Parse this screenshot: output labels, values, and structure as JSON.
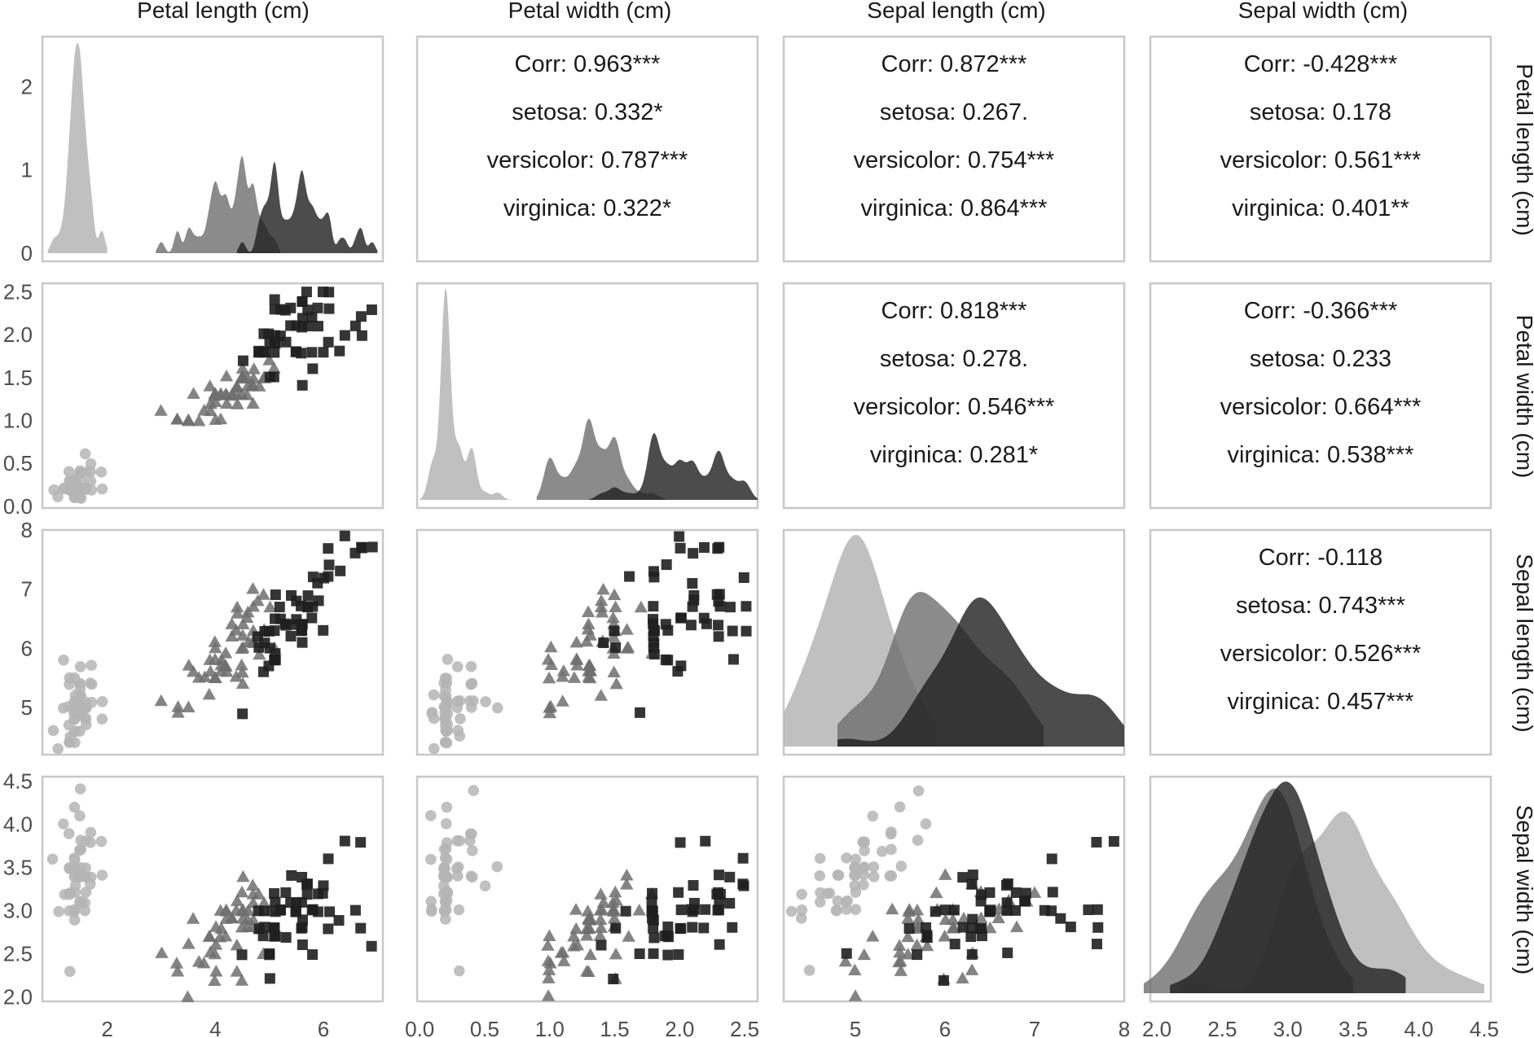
{
  "chart_data": {
    "type": "scatter",
    "variables": [
      "Petal length (cm)",
      "Petal width (cm)",
      "Sepal length (cm)",
      "Sepal width (cm)"
    ],
    "axis_ranges": [
      [
        0.8,
        7.1
      ],
      [
        -0.02,
        2.6
      ],
      [
        4.2,
        8.0
      ],
      [
        1.95,
        4.55
      ]
    ],
    "axis_ticks": [
      {
        "values": [
          2,
          4,
          6
        ],
        "labels": [
          "2",
          "4",
          "6"
        ]
      },
      {
        "values": [
          0,
          0.5,
          1,
          1.5,
          2,
          2.5
        ],
        "labels": [
          "0.0",
          "0.5",
          "1.0",
          "1.5",
          "2.0",
          "2.5"
        ]
      },
      {
        "values": [
          5,
          6,
          7,
          8
        ],
        "labels": [
          "5",
          "6",
          "7",
          "8"
        ]
      },
      {
        "values": [
          2,
          2.5,
          3,
          3.5,
          4,
          4.5
        ],
        "labels": [
          "2.0",
          "2.5",
          "3.0",
          "3.5",
          "4.0",
          "4.5"
        ]
      }
    ],
    "density_axis": {
      "range": [
        0,
        2.6
      ],
      "ticks": [
        0,
        1,
        2
      ],
      "labels": [
        "0",
        "1",
        "2"
      ]
    },
    "grid": false,
    "legend": "none",
    "species": [
      {
        "key": "setosa",
        "marker": "circle",
        "color": "#b5b5b5",
        "opacity": 0.85
      },
      {
        "key": "versicolor",
        "marker": "triangle",
        "color": "#6e6e6e",
        "opacity": 0.85
      },
      {
        "key": "virginica",
        "marker": "square",
        "color": "#1f1f1f",
        "opacity": 0.9
      }
    ],
    "correlations": [
      {
        "row": 0,
        "col": 1,
        "lines": [
          "Corr: 0.963***",
          "setosa: 0.332*",
          "versicolor: 0.787***",
          "virginica: 0.322*"
        ]
      },
      {
        "row": 0,
        "col": 2,
        "lines": [
          "Corr: 0.872***",
          "setosa: 0.267.",
          "versicolor: 0.754***",
          "virginica: 0.864***"
        ]
      },
      {
        "row": 0,
        "col": 3,
        "lines": [
          "Corr: -0.428***",
          "setosa: 0.178",
          "versicolor: 0.561***",
          "virginica: 0.401**"
        ]
      },
      {
        "row": 1,
        "col": 2,
        "lines": [
          "Corr: 0.818***",
          "setosa: 0.278.",
          "versicolor: 0.546***",
          "virginica: 0.281*"
        ]
      },
      {
        "row": 1,
        "col": 3,
        "lines": [
          "Corr: -0.366***",
          "setosa: 0.233",
          "versicolor: 0.664***",
          "virginica: 0.538***"
        ]
      },
      {
        "row": 2,
        "col": 3,
        "lines": [
          "Corr: -0.118",
          "setosa: 0.743***",
          "versicolor: 0.526***",
          "virginica: 0.457***"
        ]
      }
    ],
    "observations": {
      "setosa": [
        [
          5.1,
          3.5,
          1.4,
          0.2
        ],
        [
          4.9,
          3.0,
          1.4,
          0.2
        ],
        [
          4.7,
          3.2,
          1.3,
          0.2
        ],
        [
          4.6,
          3.1,
          1.5,
          0.2
        ],
        [
          5.0,
          3.6,
          1.4,
          0.2
        ],
        [
          5.4,
          3.9,
          1.7,
          0.4
        ],
        [
          4.6,
          3.4,
          1.4,
          0.3
        ],
        [
          5.0,
          3.4,
          1.5,
          0.2
        ],
        [
          4.4,
          2.9,
          1.4,
          0.2
        ],
        [
          4.9,
          3.1,
          1.5,
          0.1
        ],
        [
          5.4,
          3.7,
          1.5,
          0.2
        ],
        [
          4.8,
          3.4,
          1.6,
          0.2
        ],
        [
          4.8,
          3.0,
          1.4,
          0.1
        ],
        [
          4.3,
          3.0,
          1.1,
          0.1
        ],
        [
          5.8,
          4.0,
          1.2,
          0.2
        ],
        [
          5.7,
          4.4,
          1.5,
          0.4
        ],
        [
          5.4,
          3.9,
          1.3,
          0.4
        ],
        [
          5.1,
          3.5,
          1.4,
          0.3
        ],
        [
          5.7,
          3.8,
          1.7,
          0.3
        ],
        [
          5.1,
          3.8,
          1.5,
          0.3
        ],
        [
          5.4,
          3.4,
          1.7,
          0.2
        ],
        [
          5.1,
          3.7,
          1.5,
          0.4
        ],
        [
          4.6,
          3.6,
          1.0,
          0.2
        ],
        [
          5.1,
          3.3,
          1.7,
          0.5
        ],
        [
          4.8,
          3.4,
          1.9,
          0.2
        ],
        [
          5.0,
          3.0,
          1.6,
          0.2
        ],
        [
          5.0,
          3.4,
          1.6,
          0.4
        ],
        [
          5.2,
          3.5,
          1.5,
          0.2
        ],
        [
          5.2,
          3.4,
          1.4,
          0.2
        ],
        [
          4.7,
          3.2,
          1.6,
          0.2
        ],
        [
          4.8,
          3.1,
          1.6,
          0.2
        ],
        [
          5.4,
          3.4,
          1.5,
          0.4
        ],
        [
          5.2,
          4.1,
          1.5,
          0.1
        ],
        [
          5.5,
          4.2,
          1.4,
          0.2
        ],
        [
          4.9,
          3.1,
          1.5,
          0.2
        ],
        [
          5.0,
          3.2,
          1.2,
          0.2
        ],
        [
          5.5,
          3.5,
          1.3,
          0.2
        ],
        [
          4.9,
          3.6,
          1.4,
          0.1
        ],
        [
          4.4,
          3.0,
          1.3,
          0.2
        ],
        [
          5.1,
          3.4,
          1.5,
          0.2
        ],
        [
          5.0,
          3.5,
          1.3,
          0.3
        ],
        [
          4.5,
          2.3,
          1.3,
          0.3
        ],
        [
          4.4,
          3.2,
          1.3,
          0.2
        ],
        [
          5.0,
          3.5,
          1.6,
          0.6
        ],
        [
          5.1,
          3.8,
          1.9,
          0.4
        ],
        [
          4.8,
          3.0,
          1.4,
          0.3
        ],
        [
          5.1,
          3.8,
          1.6,
          0.2
        ],
        [
          4.6,
          3.2,
          1.4,
          0.2
        ],
        [
          5.3,
          3.7,
          1.5,
          0.2
        ],
        [
          5.0,
          3.3,
          1.4,
          0.2
        ]
      ],
      "versicolor": [
        [
          7.0,
          3.2,
          4.7,
          1.4
        ],
        [
          6.4,
          3.2,
          4.5,
          1.5
        ],
        [
          6.9,
          3.1,
          4.9,
          1.5
        ],
        [
          5.5,
          2.3,
          4.0,
          1.3
        ],
        [
          6.5,
          2.8,
          4.6,
          1.5
        ],
        [
          5.7,
          2.8,
          4.5,
          1.3
        ],
        [
          6.3,
          3.3,
          4.7,
          1.6
        ],
        [
          4.9,
          2.4,
          3.3,
          1.0
        ],
        [
          6.6,
          2.9,
          4.6,
          1.3
        ],
        [
          5.2,
          2.7,
          3.9,
          1.4
        ],
        [
          5.0,
          2.0,
          3.5,
          1.0
        ],
        [
          5.9,
          3.0,
          4.2,
          1.5
        ],
        [
          6.0,
          2.2,
          4.0,
          1.0
        ],
        [
          6.1,
          2.9,
          4.7,
          1.4
        ],
        [
          5.6,
          2.9,
          3.6,
          1.3
        ],
        [
          6.7,
          3.1,
          4.4,
          1.4
        ],
        [
          5.6,
          3.0,
          4.5,
          1.5
        ],
        [
          5.8,
          2.7,
          4.1,
          1.0
        ],
        [
          6.2,
          2.2,
          4.5,
          1.5
        ],
        [
          5.6,
          2.5,
          3.9,
          1.1
        ],
        [
          5.9,
          3.2,
          4.8,
          1.8
        ],
        [
          6.1,
          2.8,
          4.0,
          1.3
        ],
        [
          6.3,
          2.5,
          4.9,
          1.5
        ],
        [
          6.1,
          2.8,
          4.7,
          1.2
        ],
        [
          6.4,
          2.9,
          4.3,
          1.3
        ],
        [
          6.6,
          3.0,
          4.4,
          1.4
        ],
        [
          6.8,
          2.8,
          4.8,
          1.4
        ],
        [
          6.7,
          3.0,
          5.0,
          1.7
        ],
        [
          6.0,
          2.9,
          4.5,
          1.5
        ],
        [
          5.7,
          2.6,
          3.5,
          1.0
        ],
        [
          5.5,
          2.4,
          3.8,
          1.1
        ],
        [
          5.5,
          2.4,
          3.7,
          1.0
        ],
        [
          5.8,
          2.7,
          3.9,
          1.2
        ],
        [
          6.0,
          2.7,
          5.1,
          1.6
        ],
        [
          5.4,
          3.0,
          4.5,
          1.5
        ],
        [
          6.0,
          3.4,
          4.5,
          1.6
        ],
        [
          6.7,
          3.1,
          4.7,
          1.5
        ],
        [
          6.3,
          2.3,
          4.4,
          1.3
        ],
        [
          5.6,
          3.0,
          4.1,
          1.3
        ],
        [
          5.5,
          2.5,
          4.0,
          1.3
        ],
        [
          5.5,
          2.6,
          4.4,
          1.2
        ],
        [
          6.1,
          3.0,
          4.6,
          1.4
        ],
        [
          5.8,
          2.6,
          4.0,
          1.2
        ],
        [
          5.0,
          2.3,
          3.3,
          1.0
        ],
        [
          5.6,
          2.7,
          4.2,
          1.3
        ],
        [
          5.7,
          3.0,
          4.2,
          1.2
        ],
        [
          5.7,
          2.9,
          4.2,
          1.3
        ],
        [
          6.2,
          2.9,
          4.3,
          1.3
        ],
        [
          5.1,
          2.5,
          3.0,
          1.1
        ],
        [
          5.7,
          2.8,
          4.1,
          1.3
        ]
      ],
      "virginica": [
        [
          6.3,
          3.3,
          6.0,
          2.5
        ],
        [
          5.8,
          2.7,
          5.1,
          1.9
        ],
        [
          7.1,
          3.0,
          5.9,
          2.1
        ],
        [
          6.3,
          2.9,
          5.6,
          1.8
        ],
        [
          6.5,
          3.0,
          5.8,
          2.2
        ],
        [
          7.6,
          3.0,
          6.6,
          2.1
        ],
        [
          4.9,
          2.5,
          4.5,
          1.7
        ],
        [
          7.3,
          2.9,
          6.3,
          1.8
        ],
        [
          6.7,
          2.5,
          5.8,
          1.8
        ],
        [
          7.2,
          3.6,
          6.1,
          2.5
        ],
        [
          6.5,
          3.2,
          5.1,
          2.0
        ],
        [
          6.4,
          2.7,
          5.3,
          1.9
        ],
        [
          6.8,
          3.0,
          5.5,
          2.1
        ],
        [
          5.7,
          2.5,
          5.0,
          2.0
        ],
        [
          5.8,
          2.8,
          5.1,
          2.4
        ],
        [
          6.4,
          3.2,
          5.3,
          2.3
        ],
        [
          6.5,
          3.0,
          5.5,
          1.8
        ],
        [
          7.7,
          3.8,
          6.7,
          2.2
        ],
        [
          7.7,
          2.6,
          6.9,
          2.3
        ],
        [
          6.0,
          2.2,
          5.0,
          1.5
        ],
        [
          6.9,
          3.2,
          5.7,
          2.3
        ],
        [
          5.6,
          2.8,
          4.9,
          2.0
        ],
        [
          7.7,
          2.8,
          6.7,
          2.0
        ],
        [
          6.3,
          2.7,
          4.9,
          1.8
        ],
        [
          6.7,
          3.3,
          5.7,
          2.1
        ],
        [
          7.2,
          3.2,
          6.0,
          1.8
        ],
        [
          6.2,
          2.8,
          4.8,
          1.8
        ],
        [
          6.1,
          3.0,
          4.9,
          1.8
        ],
        [
          6.4,
          2.8,
          5.6,
          2.1
        ],
        [
          7.2,
          3.0,
          5.8,
          1.6
        ],
        [
          7.4,
          2.8,
          6.1,
          1.9
        ],
        [
          7.9,
          3.8,
          6.4,
          2.0
        ],
        [
          6.4,
          2.8,
          5.6,
          2.2
        ],
        [
          6.3,
          2.8,
          5.1,
          1.5
        ],
        [
          6.1,
          2.6,
          5.6,
          1.4
        ],
        [
          7.7,
          3.0,
          6.1,
          2.3
        ],
        [
          6.3,
          3.4,
          5.6,
          2.4
        ],
        [
          6.4,
          3.1,
          5.5,
          1.8
        ],
        [
          6.0,
          3.0,
          4.8,
          1.8
        ],
        [
          6.9,
          3.1,
          5.4,
          2.1
        ],
        [
          6.7,
          3.1,
          5.6,
          2.4
        ],
        [
          6.9,
          3.1,
          5.1,
          2.3
        ],
        [
          5.8,
          2.7,
          5.1,
          1.9
        ],
        [
          6.8,
          3.2,
          5.9,
          2.3
        ],
        [
          6.7,
          3.3,
          5.7,
          2.5
        ],
        [
          6.7,
          3.0,
          5.2,
          2.3
        ],
        [
          6.3,
          2.5,
          5.0,
          1.9
        ],
        [
          6.5,
          3.0,
          5.2,
          2.0
        ],
        [
          6.2,
          3.4,
          5.4,
          2.3
        ],
        [
          5.9,
          3.0,
          5.1,
          1.8
        ]
      ]
    },
    "observation_columns": [
      "sepal_length",
      "sepal_width",
      "petal_length",
      "petal_width"
    ]
  }
}
